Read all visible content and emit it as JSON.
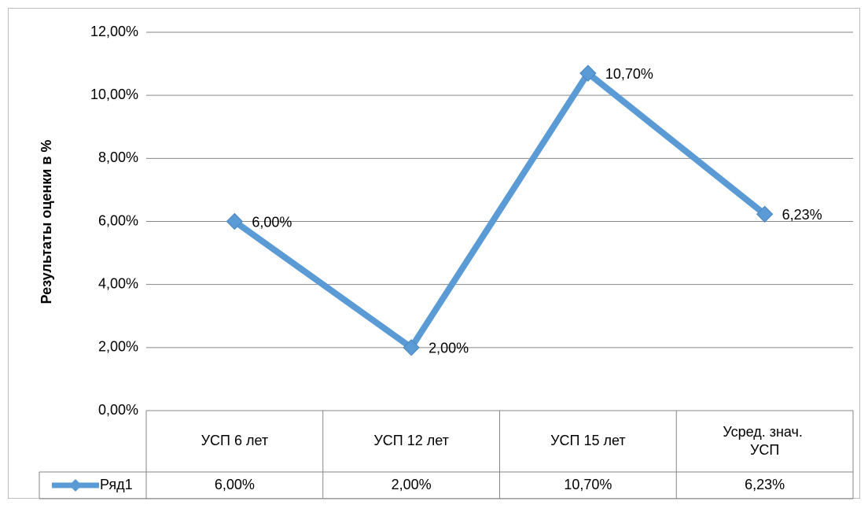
{
  "chart_data": {
    "type": "line",
    "y_label": "Результаты оценки в %",
    "categories": [
      "УСП 6 лет",
      "УСП 12 лет",
      "УСП 15 лет",
      "Усред. знач. УСП"
    ],
    "series": [
      {
        "name": "Ряд1",
        "color": "#5b9bd5",
        "values": [
          6,
          2,
          10.7,
          6.23
        ],
        "value_labels": [
          "6,00%",
          "2,00%",
          "10,70%",
          "6,23%"
        ]
      }
    ],
    "ylim": [
      0,
      12
    ],
    "yticks": [
      {
        "value": 0,
        "label": "0,00%"
      },
      {
        "value": 2,
        "label": "2,00%"
      },
      {
        "value": 4,
        "label": "4,00%"
      },
      {
        "value": 6,
        "label": "6,00%"
      },
      {
        "value": 8,
        "label": "8,00%"
      },
      {
        "value": 10,
        "label": "10,00%"
      },
      {
        "value": 12,
        "label": "12,00%"
      }
    ],
    "grid": true,
    "data_table": true
  }
}
